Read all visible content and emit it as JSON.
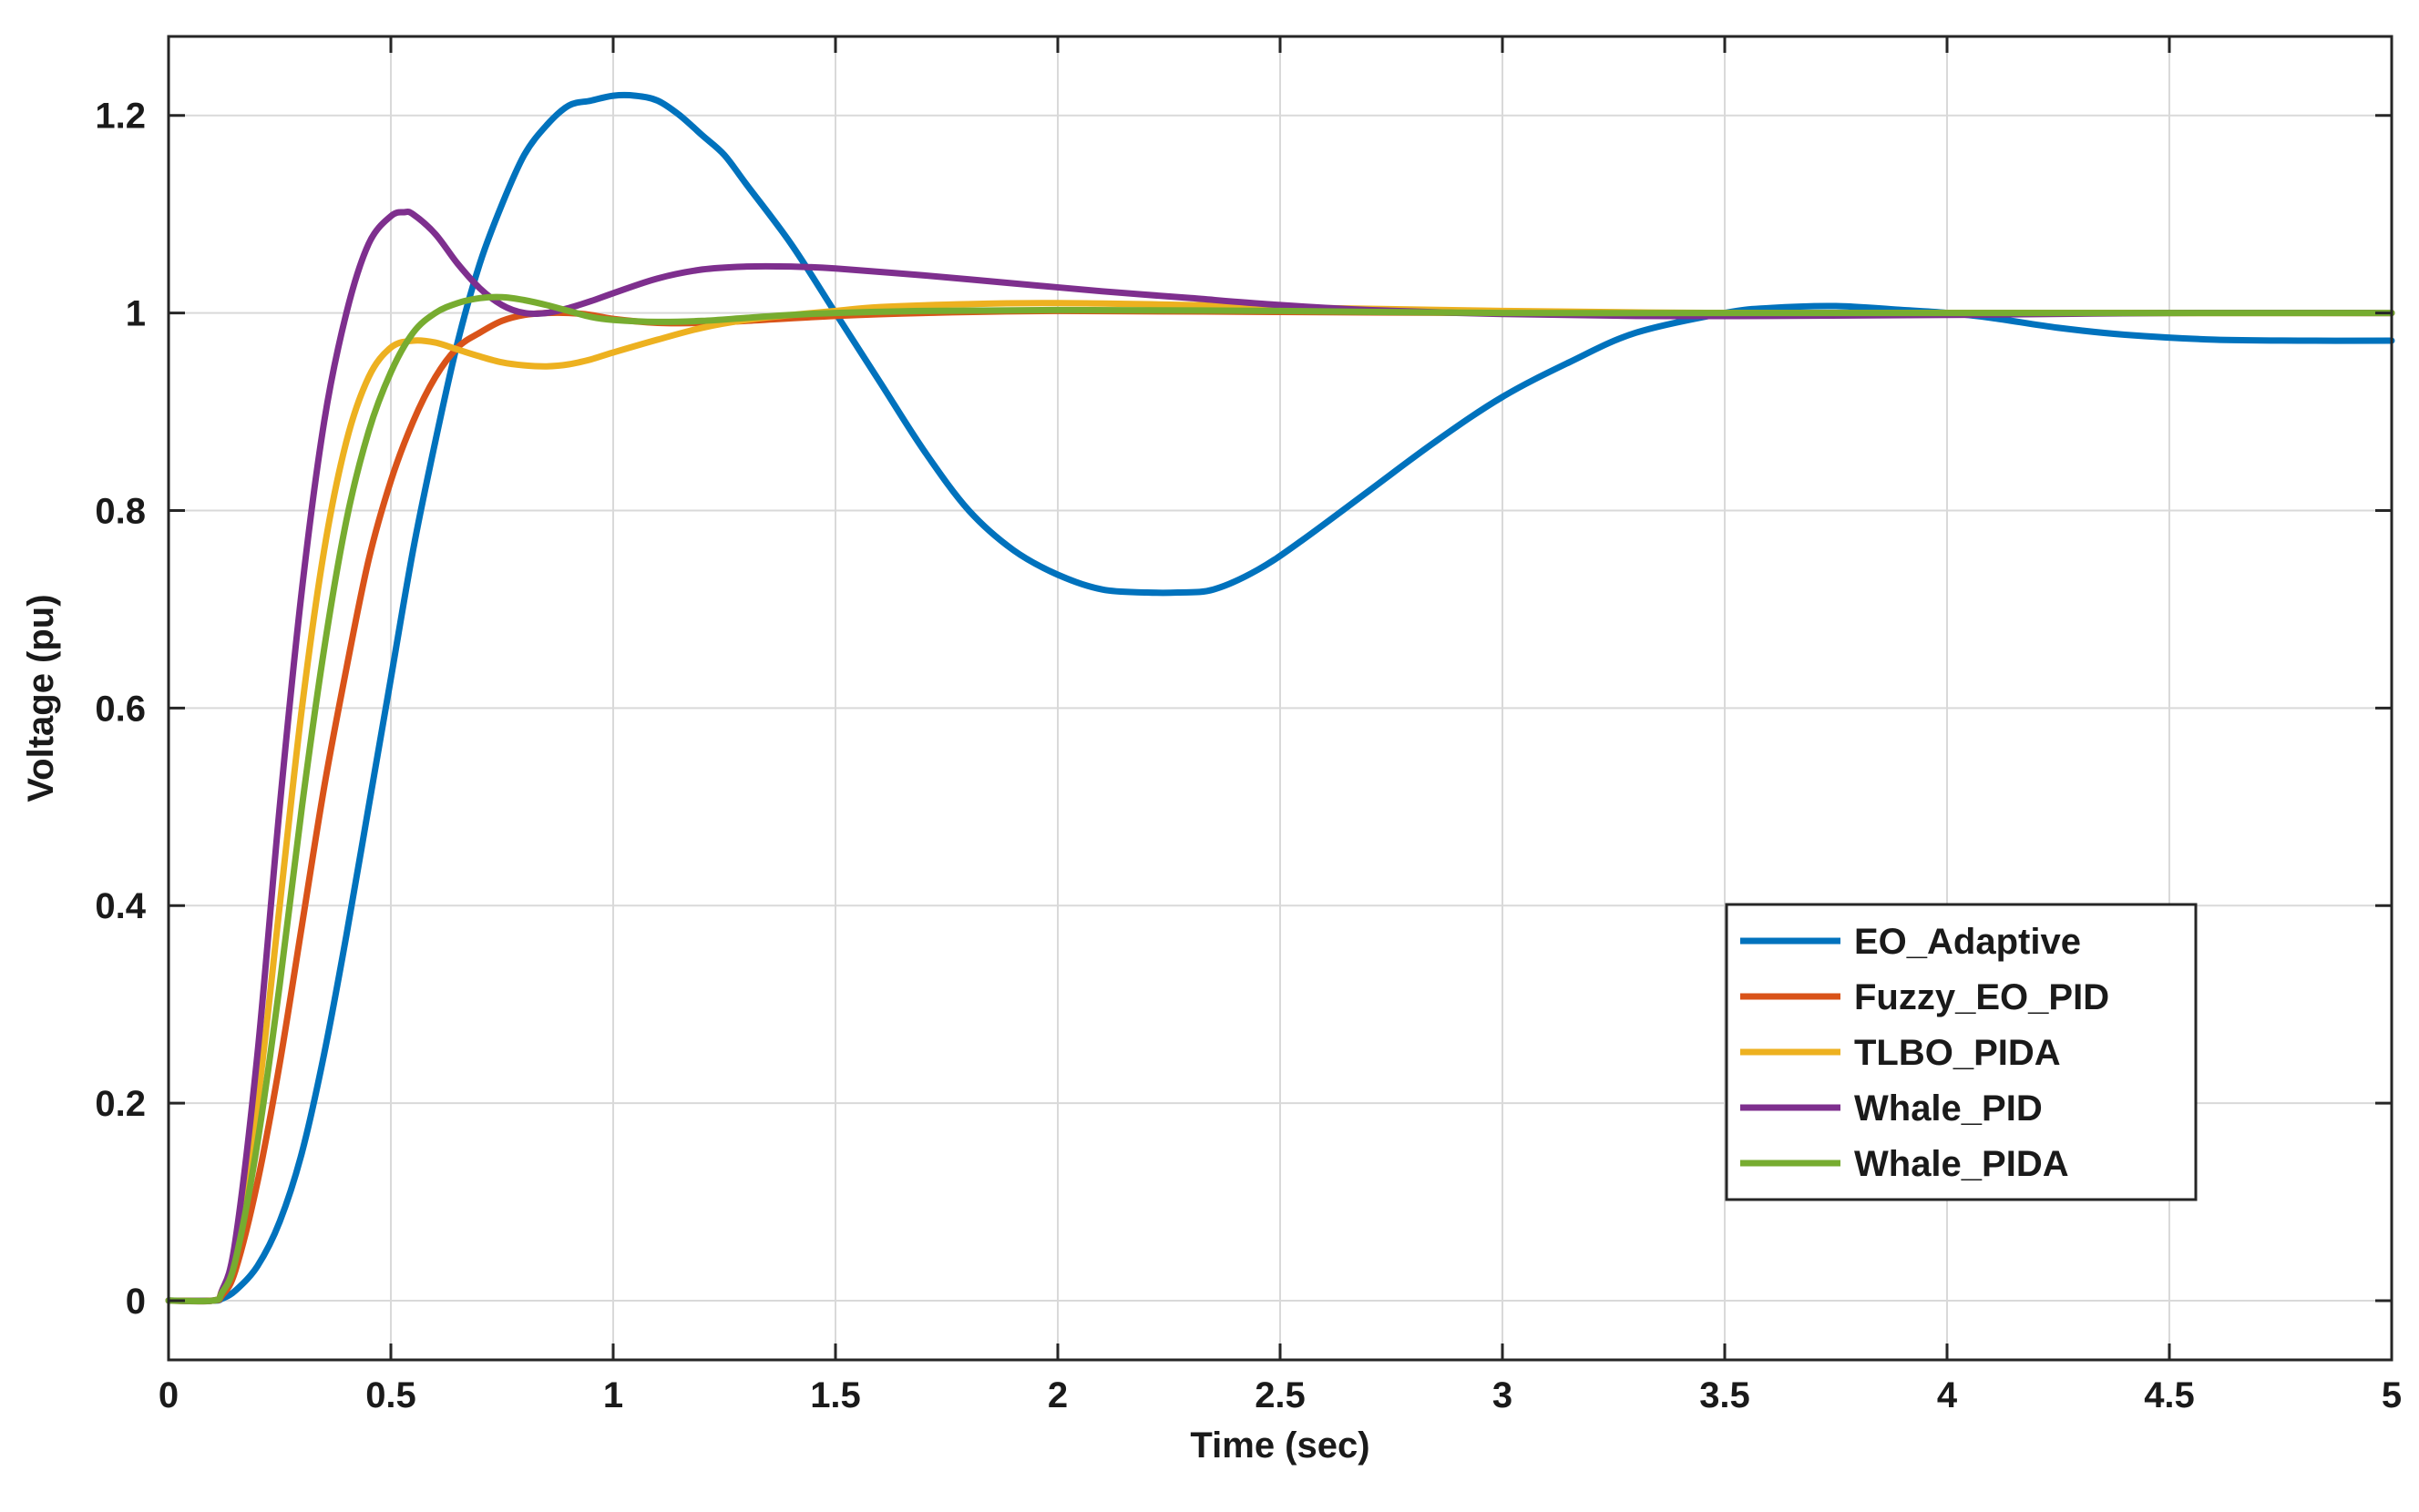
{
  "chart_data": {
    "type": "line",
    "title": "",
    "xlabel": "Time (sec)",
    "ylabel": "Voltage (pu)",
    "xlim": [
      0,
      5
    ],
    "ylim": [
      -0.06,
      1.28
    ],
    "xticks": [
      0,
      0.5,
      1,
      1.5,
      2,
      2.5,
      3,
      3.5,
      4,
      4.5,
      5
    ],
    "xtick_labels": [
      "0",
      "0.5",
      "1",
      "1.5",
      "2",
      "2.5",
      "3",
      "3.5",
      "4",
      "4.5",
      "5"
    ],
    "yticks": [
      0,
      0.2,
      0.4,
      0.6,
      0.8,
      1,
      1.2
    ],
    "ytick_labels": [
      "0",
      "0.2",
      "0.4",
      "0.6",
      "0.8",
      "1",
      "1.2"
    ],
    "grid": true,
    "legend_position": "lower-right",
    "series": [
      {
        "name": "EO_Adaptive",
        "color": "#0072bd",
        "x": [
          0,
          0.1,
          0.12,
          0.15,
          0.2,
          0.25,
          0.3,
          0.35,
          0.4,
          0.45,
          0.5,
          0.55,
          0.6,
          0.65,
          0.7,
          0.75,
          0.8,
          0.85,
          0.9,
          0.95,
          1.0,
          1.05,
          1.1,
          1.15,
          1.2,
          1.25,
          1.3,
          1.4,
          1.5,
          1.6,
          1.7,
          1.8,
          1.9,
          2.0,
          2.1,
          2.2,
          2.27,
          2.35,
          2.45,
          2.55,
          2.7,
          2.85,
          3.0,
          3.15,
          3.3,
          3.5,
          3.6,
          3.75,
          3.9,
          4.0,
          4.1,
          4.25,
          4.4,
          4.6,
          4.8,
          5.0
        ],
        "y": [
          0,
          0,
          0.002,
          0.01,
          0.035,
          0.08,
          0.15,
          0.25,
          0.37,
          0.5,
          0.63,
          0.76,
          0.87,
          0.97,
          1.05,
          1.11,
          1.16,
          1.19,
          1.21,
          1.215,
          1.22,
          1.22,
          1.215,
          1.2,
          1.18,
          1.16,
          1.13,
          1.07,
          1.0,
          0.93,
          0.86,
          0.8,
          0.76,
          0.735,
          0.72,
          0.717,
          0.717,
          0.72,
          0.74,
          0.77,
          0.82,
          0.87,
          0.915,
          0.95,
          0.98,
          1.0,
          1.005,
          1.007,
          1.003,
          1.0,
          0.995,
          0.985,
          0.978,
          0.973,
          0.972,
          0.972
        ]
      },
      {
        "name": "Fuzzy_EO_PID",
        "color": "#d95319",
        "x": [
          0,
          0.1,
          0.12,
          0.15,
          0.2,
          0.25,
          0.3,
          0.35,
          0.4,
          0.45,
          0.5,
          0.55,
          0.6,
          0.65,
          0.7,
          0.75,
          0.8,
          0.85,
          0.9,
          0.95,
          1.0,
          1.1,
          1.2,
          1.3,
          1.5,
          1.7,
          2.0,
          2.5,
          3.0,
          3.5,
          4.0,
          5.0
        ],
        "y": [
          0,
          0,
          0.005,
          0.03,
          0.12,
          0.24,
          0.38,
          0.52,
          0.64,
          0.75,
          0.83,
          0.89,
          0.935,
          0.965,
          0.98,
          0.992,
          0.998,
          1.0,
          1.0,
          0.998,
          0.994,
          0.99,
          0.99,
          0.992,
          0.997,
          1.0,
          1.002,
          1.001,
          1.0,
          1.0,
          1.0,
          1.0
        ]
      },
      {
        "name": "TLBO_PIDA",
        "color": "#edb120",
        "x": [
          0,
          0.1,
          0.12,
          0.15,
          0.2,
          0.25,
          0.3,
          0.35,
          0.4,
          0.45,
          0.5,
          0.55,
          0.6,
          0.65,
          0.7,
          0.75,
          0.8,
          0.85,
          0.9,
          0.95,
          1.0,
          1.1,
          1.2,
          1.3,
          1.4,
          1.5,
          1.6,
          1.8,
          2.0,
          2.3,
          2.6,
          3.0,
          3.5,
          4.0,
          5.0
        ],
        "y": [
          0,
          0,
          0.01,
          0.05,
          0.2,
          0.4,
          0.6,
          0.76,
          0.87,
          0.935,
          0.965,
          0.972,
          0.97,
          0.963,
          0.956,
          0.95,
          0.947,
          0.946,
          0.948,
          0.953,
          0.96,
          0.973,
          0.985,
          0.993,
          0.998,
          1.002,
          1.006,
          1.009,
          1.01,
          1.008,
          1.005,
          1.002,
          1.0,
          1.0,
          1.0
        ]
      },
      {
        "name": "Whale_PID",
        "color": "#7e2f8e",
        "x": [
          0,
          0.1,
          0.12,
          0.15,
          0.2,
          0.25,
          0.3,
          0.35,
          0.4,
          0.45,
          0.5,
          0.53,
          0.55,
          0.6,
          0.65,
          0.7,
          0.75,
          0.8,
          0.85,
          0.9,
          0.95,
          1.0,
          1.1,
          1.2,
          1.3,
          1.4,
          1.5,
          1.7,
          1.9,
          2.1,
          2.3,
          2.5,
          2.7,
          3.0,
          3.3,
          3.6,
          4.0,
          4.5,
          5.0
        ],
        "y": [
          0,
          0,
          0.01,
          0.06,
          0.25,
          0.5,
          0.72,
          0.89,
          1.0,
          1.07,
          1.098,
          1.102,
          1.1,
          1.08,
          1.05,
          1.025,
          1.008,
          1.0,
          1.0,
          1.005,
          1.012,
          1.02,
          1.035,
          1.044,
          1.047,
          1.047,
          1.045,
          1.038,
          1.03,
          1.022,
          1.015,
          1.008,
          1.003,
          0.999,
          0.997,
          0.997,
          0.998,
          1.0,
          1.0
        ]
      },
      {
        "name": "Whale_PIDA",
        "color": "#77ac30",
        "x": [
          0,
          0.1,
          0.12,
          0.15,
          0.2,
          0.25,
          0.3,
          0.35,
          0.4,
          0.45,
          0.5,
          0.55,
          0.6,
          0.65,
          0.7,
          0.75,
          0.8,
          0.85,
          0.9,
          0.95,
          1.0,
          1.1,
          1.2,
          1.3,
          1.4,
          1.5,
          1.7,
          2.0,
          2.5,
          3.0,
          3.5,
          4.0,
          5.0
        ],
        "y": [
          0,
          0,
          0.008,
          0.04,
          0.16,
          0.32,
          0.5,
          0.66,
          0.79,
          0.88,
          0.94,
          0.98,
          1.0,
          1.01,
          1.015,
          1.016,
          1.013,
          1.008,
          1.002,
          0.996,
          0.993,
          0.991,
          0.992,
          0.995,
          0.998,
          1.0,
          1.002,
          1.003,
          1.002,
          1.0,
          1.0,
          1.0,
          1.0
        ]
      }
    ]
  }
}
